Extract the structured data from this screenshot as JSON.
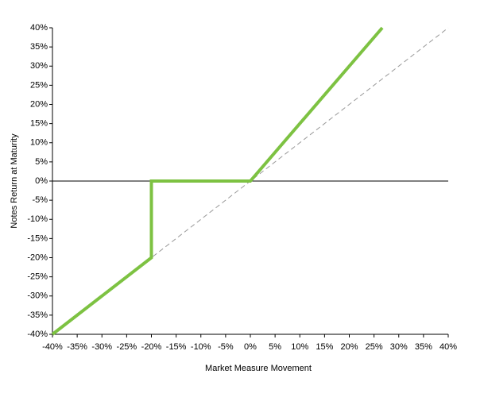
{
  "chart_data": {
    "type": "line",
    "xlabel": "Market Measure Movement",
    "ylabel": "Notes Return at Maturity",
    "xlim": [
      -40,
      40
    ],
    "ylim": [
      -40,
      40
    ],
    "xticks": [
      {
        "value": -40,
        "label": "-40%"
      },
      {
        "value": -35,
        "label": "-35%"
      },
      {
        "value": -30,
        "label": "-30%"
      },
      {
        "value": -25,
        "label": "-25%"
      },
      {
        "value": -20,
        "label": "-20%"
      },
      {
        "value": -15,
        "label": "-15%"
      },
      {
        "value": -10,
        "label": "-10%"
      },
      {
        "value": -5,
        "label": "-5%"
      },
      {
        "value": 0,
        "label": "0%"
      },
      {
        "value": 5,
        "label": "5%"
      },
      {
        "value": 10,
        "label": "10%"
      },
      {
        "value": 15,
        "label": "15%"
      },
      {
        "value": 20,
        "label": "20%"
      },
      {
        "value": 25,
        "label": "25%"
      },
      {
        "value": 30,
        "label": "30%"
      },
      {
        "value": 35,
        "label": "35%"
      },
      {
        "value": 40,
        "label": "40%"
      }
    ],
    "yticks": [
      {
        "value": -40,
        "label": "-40%"
      },
      {
        "value": -35,
        "label": "-35%"
      },
      {
        "value": -30,
        "label": "-30%"
      },
      {
        "value": -25,
        "label": "-25%"
      },
      {
        "value": -20,
        "label": "-20%"
      },
      {
        "value": -15,
        "label": "-15%"
      },
      {
        "value": -10,
        "label": "-10%"
      },
      {
        "value": -5,
        "label": "-5%"
      },
      {
        "value": 0,
        "label": "0%"
      },
      {
        "value": 5,
        "label": "5%"
      },
      {
        "value": 10,
        "label": "10%"
      },
      {
        "value": 15,
        "label": "15%"
      },
      {
        "value": 20,
        "label": "20%"
      },
      {
        "value": 25,
        "label": "25%"
      },
      {
        "value": 30,
        "label": "30%"
      },
      {
        "value": 35,
        "label": "35%"
      },
      {
        "value": 40,
        "label": "40%"
      }
    ],
    "series": [
      {
        "color": "#999999",
        "dashed": true,
        "x": [
          -40,
          40
        ],
        "values": [
          -40,
          40
        ]
      },
      {
        "color": "#7dc242",
        "dashed": false,
        "x": [
          -40,
          -20,
          -20,
          0,
          26.67
        ],
        "values": [
          -40,
          -20,
          0,
          0,
          40
        ]
      }
    ]
  }
}
